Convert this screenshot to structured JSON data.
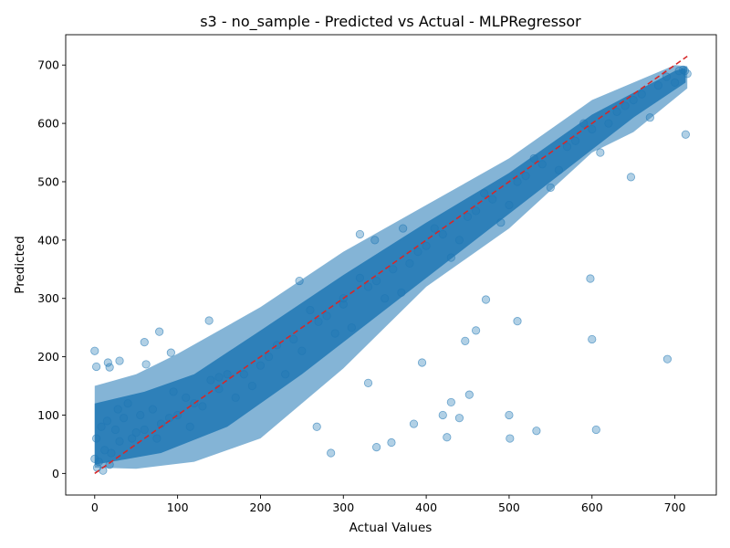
{
  "chart_data": {
    "type": "scatter",
    "title": "s3 - no_sample - Predicted vs Actual - MLPRegressor",
    "xlabel": "Actual Values",
    "ylabel": "Predicted",
    "xlim": [
      -35,
      750
    ],
    "ylim": [
      -37,
      752
    ],
    "xticks": [
      0,
      100,
      200,
      300,
      400,
      500,
      600,
      700
    ],
    "yticks": [
      0,
      100,
      200,
      300,
      400,
      500,
      600,
      700
    ],
    "grid": false,
    "legend": "none",
    "colors": {
      "points": "#1f77b4",
      "reference_line": "#d62728"
    },
    "series": [
      {
        "kind": "points",
        "x": [
          0,
          5,
          12,
          20,
          30,
          45,
          60,
          80,
          100,
          120,
          150,
          180,
          210,
          240,
          270,
          300,
          330,
          360,
          390,
          420,
          450,
          480,
          510,
          540,
          570,
          600,
          630,
          660,
          690,
          712,
          2,
          8,
          15,
          25,
          35,
          50,
          70,
          90,
          110,
          130,
          160,
          190,
          220,
          250,
          280,
          310,
          340,
          370,
          400,
          430,
          460,
          490,
          520,
          550,
          580,
          610,
          640,
          670,
          700,
          715,
          3,
          10,
          18,
          28,
          40,
          55,
          75,
          95,
          115,
          140,
          170,
          200,
          230,
          260,
          290,
          320,
          350,
          380,
          410,
          440,
          470,
          500,
          530,
          560,
          590,
          620,
          650,
          680,
          705,
          710
        ],
        "y": [
          25,
          20,
          40,
          35,
          55,
          60,
          75,
          85,
          100,
          120,
          145,
          170,
          200,
          230,
          260,
          290,
          320,
          350,
          380,
          410,
          440,
          470,
          500,
          530,
          560,
          590,
          620,
          650,
          680,
          690,
          60,
          80,
          90,
          75,
          95,
          70,
          110,
          95,
          130,
          115,
          170,
          150,
          220,
          210,
          270,
          250,
          330,
          310,
          390,
          370,
          450,
          430,
          510,
          490,
          570,
          550,
          630,
          610,
          670,
          685,
          10,
          5,
          15,
          110,
          120,
          100,
          60,
          140,
          80,
          160,
          130,
          185,
          170,
          280,
          240,
          335,
          300,
          360,
          420,
          400,
          480,
          460,
          540,
          520,
          600,
          600,
          640,
          665,
          690,
          692
        ]
      },
      {
        "kind": "outliers",
        "x": [
          0,
          2,
          16,
          18,
          30,
          60,
          62,
          78,
          92,
          138,
          150,
          247,
          268,
          285,
          300,
          320,
          330,
          338,
          340,
          358,
          372,
          385,
          395,
          420,
          425,
          430,
          440,
          447,
          452,
          460,
          472,
          500,
          501,
          510,
          533,
          598,
          600,
          605,
          647,
          691,
          713
        ],
        "y": [
          210,
          183,
          190,
          182,
          193,
          225,
          187,
          243,
          207,
          262,
          165,
          330,
          80,
          35,
          300,
          410,
          155,
          400,
          45,
          53,
          420,
          85,
          190,
          100,
          62,
          122,
          95,
          227,
          135,
          245,
          298,
          100,
          60,
          261,
          73,
          334,
          230,
          75,
          508,
          196,
          581
        ]
      },
      {
        "kind": "reference_line",
        "x": [
          0,
          715
        ],
        "y": [
          0,
          715
        ]
      }
    ]
  }
}
